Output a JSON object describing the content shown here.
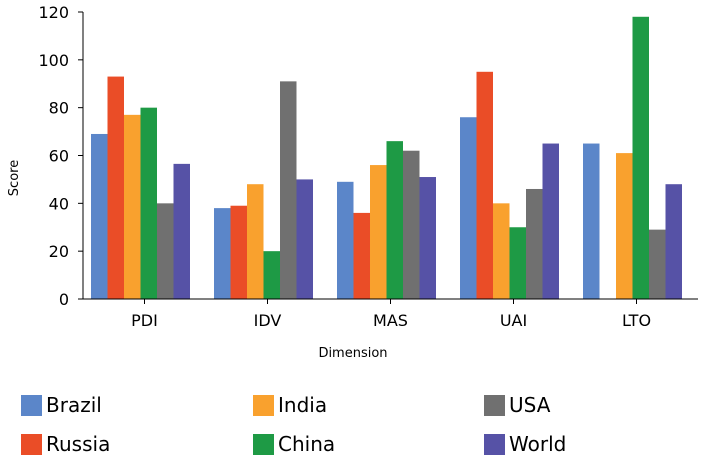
{
  "chart_data": {
    "type": "bar",
    "categories": [
      "PDI",
      "IDV",
      "MAS",
      "UAI",
      "LTO"
    ],
    "series": [
      {
        "name": "Brazil",
        "color": "#5b86c9",
        "values": [
          69,
          38,
          49,
          76,
          65
        ]
      },
      {
        "name": "Russia",
        "color": "#ea4d27",
        "values": [
          93,
          39,
          36,
          95,
          null
        ]
      },
      {
        "name": "India",
        "color": "#f9a12e",
        "values": [
          77,
          48,
          56,
          40,
          61
        ]
      },
      {
        "name": "China",
        "color": "#1e9a45",
        "values": [
          80,
          20,
          66,
          30,
          118
        ]
      },
      {
        "name": "USA",
        "color": "#707070",
        "values": [
          40,
          91,
          62,
          46,
          29
        ]
      },
      {
        "name": "World",
        "color": "#5652a6",
        "values": [
          56.5,
          50,
          51,
          65,
          48
        ]
      }
    ],
    "xlabel": "Dimension",
    "ylabel": "Score",
    "ylim": [
      0,
      120
    ],
    "yticks": [
      "0",
      "20",
      "40",
      "60",
      "80",
      "100",
      "120"
    ],
    "grid": false,
    "legend_position": "bottom"
  }
}
